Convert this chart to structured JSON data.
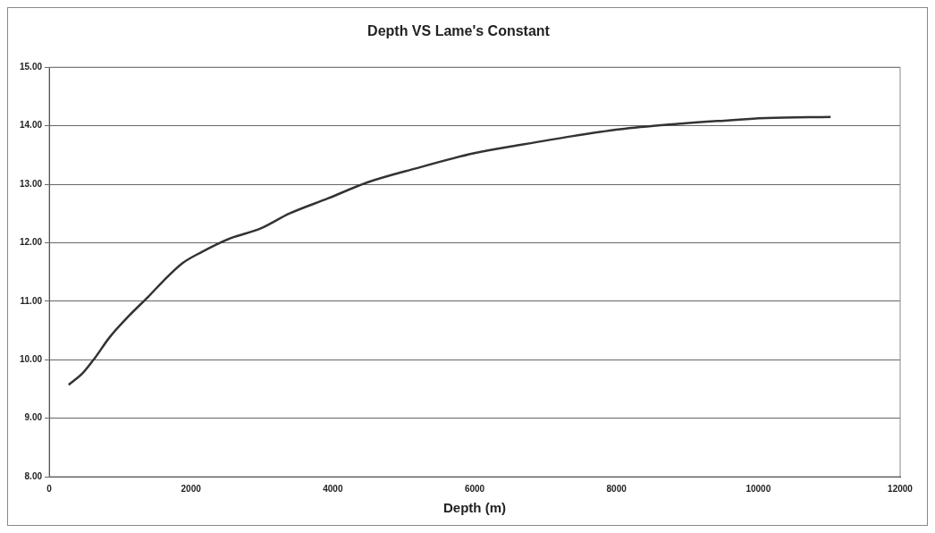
{
  "chart_data": {
    "type": "line",
    "title": "Depth VS Lame's Constant",
    "xlabel": "Depth (m)",
    "x": [
      274,
      480,
      645,
      850,
      1125,
      1400,
      1605,
      1880,
      2150,
      2565,
      2977,
      3390,
      3937,
      4486,
      5170,
      5995,
      6680,
      7366,
      8052,
      8738,
      9424,
      10110,
      11020
    ],
    "series": [
      {
        "color": "#333333",
        "values": [
          9.57,
          9.78,
          10.03,
          10.38,
          10.75,
          11.08,
          11.34,
          11.65,
          11.84,
          12.08,
          12.24,
          12.5,
          12.76,
          13.03,
          13.27,
          13.53,
          13.68,
          13.82,
          13.94,
          14.02,
          14.08,
          14.13,
          14.15
        ]
      }
    ],
    "xlim": [
      0,
      12000
    ],
    "xticks": [
      0,
      2000,
      4000,
      6000,
      8000,
      10000,
      12000
    ],
    "ylim": [
      8,
      15
    ],
    "yticks": [
      {
        "value": 8,
        "label": "8.00"
      },
      {
        "value": 9,
        "label": "9.00"
      },
      {
        "value": 10,
        "label": "10.00"
      },
      {
        "value": 11,
        "label": "11.00"
      },
      {
        "value": 12,
        "label": "12.00"
      },
      {
        "value": 13,
        "label": "13.00"
      },
      {
        "value": 14,
        "label": "14.00"
      },
      {
        "value": 15,
        "label": "15.00"
      }
    ],
    "grid": "y",
    "legend": false,
    "marker": "none",
    "line_style": "solid"
  }
}
